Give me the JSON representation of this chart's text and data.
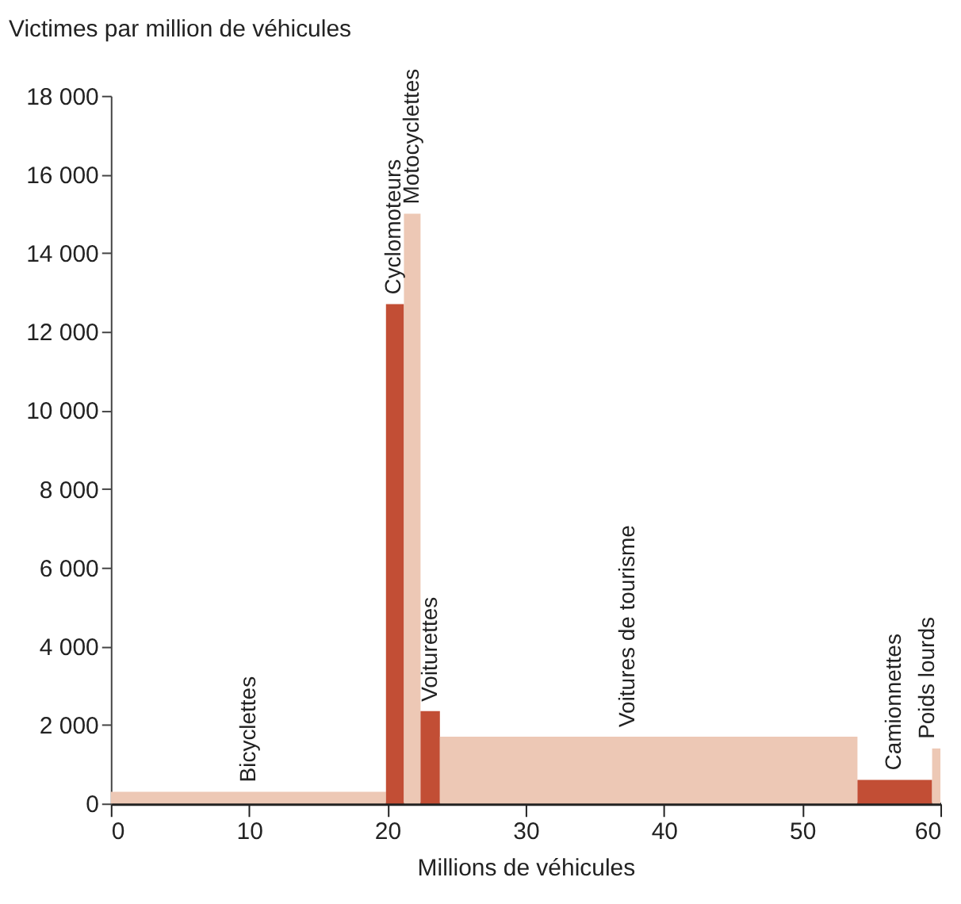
{
  "chart_data": {
    "type": "histogram",
    "ylabel": "Victimes par million de véhicules",
    "xlabel": "Millions de véhicules",
    "bins": [
      0,
      19.9,
      21.2,
      22.4,
      23.8,
      54.0,
      59.4,
      60
    ],
    "values": [
      300,
      12700,
      15000,
      2350,
      1700,
      600,
      1400
    ],
    "colors": [
      "#edc8b5",
      "#c24e35",
      "#edc8b5",
      "#c24e35",
      "#edc8b5",
      "#c24e35",
      "#edc8b5"
    ],
    "xlim": [
      0,
      60
    ],
    "xticks": [
      0,
      10,
      20,
      30,
      40,
      50,
      60
    ],
    "ylim": [
      0,
      18000
    ],
    "yticks": [
      0,
      {
        "value": 2000,
        "label": "2 000"
      },
      {
        "value": 4000,
        "label": "4 000"
      },
      {
        "value": 6000,
        "label": "6 000"
      },
      {
        "value": 8000,
        "label": "8 000"
      },
      {
        "value": 10000,
        "label": "10 000"
      },
      {
        "value": 12000,
        "label": "12 000"
      },
      {
        "value": 14000,
        "label": "14 000"
      },
      {
        "value": 16000,
        "label": "16 000"
      },
      {
        "value": 18000,
        "label": "18 000"
      }
    ],
    "grid": false,
    "annotations": [
      {
        "text": "Bicyclettes",
        "x": 10,
        "y": 300
      },
      {
        "text": "Cyclomoteurs",
        "x": 20.5,
        "y": 12700
      },
      {
        "text": "Motocyclettes",
        "x": 21.8,
        "y": 15000
      },
      {
        "text": "Voiturettes",
        "x": 23.1,
        "y": 2350
      },
      {
        "text": "Voitures de tourisme",
        "x": 37.4,
        "y": 1700
      },
      {
        "text": "Camionnettes",
        "x": 56.7,
        "y": 600
      },
      {
        "text": "Poids lourds",
        "x": 59.1,
        "y": 1400
      }
    ]
  }
}
